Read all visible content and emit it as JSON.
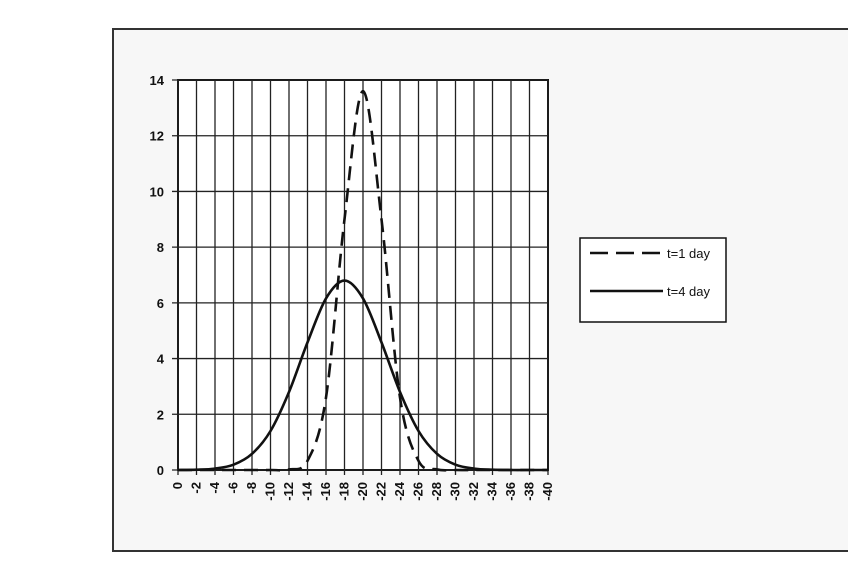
{
  "chart_data": {
    "type": "line",
    "title": "",
    "xlabel": "",
    "ylabel": "",
    "x": [
      0,
      2,
      4,
      6,
      8,
      10,
      12,
      14,
      16,
      18,
      20,
      22,
      24,
      26,
      28,
      30,
      32,
      34,
      36,
      38,
      40
    ],
    "x_tick_labels": [
      "0",
      "-2",
      "-4",
      "-6",
      "-8",
      "-10",
      "-12",
      "-14",
      "-16",
      "-18",
      "-20",
      "-22",
      "-24",
      "-26",
      "-28",
      "-30",
      "-32",
      "-34",
      "-36",
      "-38",
      "-40"
    ],
    "y_ticks": [
      0,
      2,
      4,
      6,
      8,
      10,
      12,
      14
    ],
    "xlim": [
      0,
      40
    ],
    "ylim": [
      0,
      14
    ],
    "grid": "vertical",
    "legend_position": "right",
    "series": [
      {
        "name": "t=1 day",
        "style": "dashed",
        "values": [
          0,
          0,
          0,
          0,
          0,
          0,
          0.02,
          0.33,
          2.6,
          9.0,
          13.6,
          9.0,
          2.6,
          0.33,
          0.02,
          0,
          0,
          0,
          0,
          0,
          0
        ]
      },
      {
        "name": "t=4 day",
        "style": "solid",
        "values": [
          0,
          0.01,
          0.05,
          0.19,
          0.58,
          1.4,
          2.8,
          4.58,
          6.16,
          6.8,
          6.16,
          4.58,
          2.8,
          1.4,
          0.58,
          0.19,
          0.05,
          0.01,
          0,
          0,
          0
        ]
      }
    ]
  }
}
